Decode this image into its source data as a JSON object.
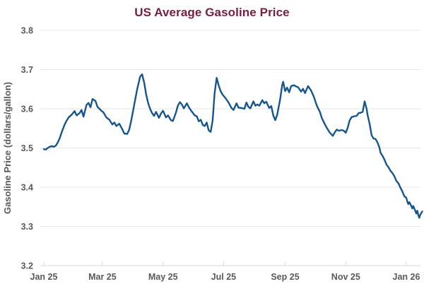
{
  "title": "US Average Gasoline Price",
  "colors": {
    "title": "#7a1c3d",
    "line": "#16568c",
    "axis_text": "#58595b",
    "gridline": "#e6e6e6",
    "bottom_line": "#d9d9d9",
    "background": "#ffffff"
  },
  "chart_data": {
    "type": "line",
    "title": "US Average Gasoline Price",
    "xlabel": "",
    "ylabel": "Gasoline Price (dollars/gallon)",
    "ylim": [
      3.2,
      3.8
    ],
    "y_tick_values": [
      3.8,
      3.7,
      3.6,
      3.5,
      3.4,
      3.3,
      3.2
    ],
    "y_tick_labels": [
      "3.8",
      "3.7",
      "3.6",
      "3.5",
      "3.4",
      "3.3",
      "3.2"
    ],
    "x_tick_labels": [
      "Jan 25",
      "Mar 25",
      "May 25",
      "Jul 25",
      "Sep 25",
      "Nov 25",
      "Jan 26"
    ],
    "x_tick_days": [
      0,
      59,
      120,
      181,
      243,
      304,
      365
    ],
    "x_unit": "days since Jan 1 2025",
    "x_range_days": [
      0,
      381
    ],
    "grid": "horizontal only",
    "legend": "none",
    "series": [
      {
        "name": "US average gasoline price (dollars/gallon)",
        "points": [
          [
            0,
            3.497
          ],
          [
            2,
            3.496
          ],
          [
            4,
            3.5
          ],
          [
            6,
            3.503
          ],
          [
            8,
            3.505
          ],
          [
            10,
            3.503
          ],
          [
            12,
            3.506
          ],
          [
            14,
            3.514
          ],
          [
            16,
            3.525
          ],
          [
            18,
            3.54
          ],
          [
            21,
            3.56
          ],
          [
            23,
            3.57
          ],
          [
            25,
            3.578
          ],
          [
            28,
            3.585
          ],
          [
            31,
            3.594
          ],
          [
            33,
            3.583
          ],
          [
            36,
            3.589
          ],
          [
            38,
            3.597
          ],
          [
            40,
            3.58
          ],
          [
            43,
            3.61
          ],
          [
            45,
            3.615
          ],
          [
            47,
            3.604
          ],
          [
            49,
            3.625
          ],
          [
            52,
            3.62
          ],
          [
            54,
            3.605
          ],
          [
            56,
            3.6
          ],
          [
            58,
            3.595
          ],
          [
            60,
            3.591
          ],
          [
            63,
            3.578
          ],
          [
            66,
            3.572
          ],
          [
            69,
            3.56
          ],
          [
            71,
            3.565
          ],
          [
            73,
            3.556
          ],
          [
            76,
            3.562
          ],
          [
            79,
            3.548
          ],
          [
            81,
            3.537
          ],
          [
            84,
            3.536
          ],
          [
            86,
            3.547
          ],
          [
            88,
            3.57
          ],
          [
            91,
            3.61
          ],
          [
            94,
            3.65
          ],
          [
            97,
            3.682
          ],
          [
            99,
            3.688
          ],
          [
            101,
            3.667
          ],
          [
            103,
            3.637
          ],
          [
            105,
            3.615
          ],
          [
            107,
            3.6
          ],
          [
            109,
            3.589
          ],
          [
            111,
            3.582
          ],
          [
            113,
            3.592
          ],
          [
            116,
            3.577
          ],
          [
            118,
            3.588
          ],
          [
            120,
            3.595
          ],
          [
            123,
            3.578
          ],
          [
            125,
            3.583
          ],
          [
            128,
            3.571
          ],
          [
            130,
            3.569
          ],
          [
            133,
            3.59
          ],
          [
            135,
            3.608
          ],
          [
            137,
            3.617
          ],
          [
            139,
            3.611
          ],
          [
            141,
            3.601
          ],
          [
            144,
            3.614
          ],
          [
            146,
            3.604
          ],
          [
            149,
            3.593
          ],
          [
            152,
            3.583
          ],
          [
            154,
            3.581
          ],
          [
            156,
            3.568
          ],
          [
            158,
            3.572
          ],
          [
            160,
            3.559
          ],
          [
            162,
            3.556
          ],
          [
            164,
            3.565
          ],
          [
            166,
            3.545
          ],
          [
            168,
            3.541
          ],
          [
            170,
            3.57
          ],
          [
            172,
            3.64
          ],
          [
            174,
            3.679
          ],
          [
            176,
            3.66
          ],
          [
            178,
            3.645
          ],
          [
            180,
            3.636
          ],
          [
            183,
            3.627
          ],
          [
            186,
            3.616
          ],
          [
            189,
            3.602
          ],
          [
            191,
            3.597
          ],
          [
            194,
            3.614
          ],
          [
            196,
            3.603
          ],
          [
            199,
            3.602
          ],
          [
            202,
            3.6
          ],
          [
            204,
            3.616
          ],
          [
            206,
            3.605
          ],
          [
            208,
            3.601
          ],
          [
            211,
            3.619
          ],
          [
            213,
            3.608
          ],
          [
            215,
            3.611
          ],
          [
            217,
            3.608
          ],
          [
            220,
            3.622
          ],
          [
            222,
            3.614
          ],
          [
            224,
            3.618
          ],
          [
            227,
            3.602
          ],
          [
            229,
            3.607
          ],
          [
            231,
            3.583
          ],
          [
            233,
            3.571
          ],
          [
            235,
            3.585
          ],
          [
            238,
            3.625
          ],
          [
            240,
            3.66
          ],
          [
            241,
            3.669
          ],
          [
            243,
            3.645
          ],
          [
            245,
            3.654
          ],
          [
            247,
            3.642
          ],
          [
            249,
            3.658
          ],
          [
            252,
            3.66
          ],
          [
            254,
            3.657
          ],
          [
            256,
            3.655
          ],
          [
            259,
            3.644
          ],
          [
            261,
            3.651
          ],
          [
            263,
            3.64
          ],
          [
            266,
            3.658
          ],
          [
            269,
            3.647
          ],
          [
            272,
            3.63
          ],
          [
            275,
            3.607
          ],
          [
            278,
            3.592
          ],
          [
            280,
            3.576
          ],
          [
            283,
            3.56
          ],
          [
            285,
            3.551
          ],
          [
            288,
            3.539
          ],
          [
            291,
            3.531
          ],
          [
            293,
            3.54
          ],
          [
            295,
            3.547
          ],
          [
            297,
            3.544
          ],
          [
            300,
            3.546
          ],
          [
            302,
            3.544
          ],
          [
            304,
            3.539
          ],
          [
            306,
            3.552
          ],
          [
            308,
            3.571
          ],
          [
            310,
            3.579
          ],
          [
            313,
            3.581
          ],
          [
            315,
            3.582
          ],
          [
            317,
            3.589
          ],
          [
            319,
            3.59
          ],
          [
            321,
            3.592
          ],
          [
            323,
            3.619
          ],
          [
            325,
            3.6
          ],
          [
            326,
            3.584
          ],
          [
            328,
            3.562
          ],
          [
            330,
            3.533
          ],
          [
            332,
            3.524
          ],
          [
            334,
            3.523
          ],
          [
            336,
            3.514
          ],
          [
            338,
            3.5
          ],
          [
            339,
            3.488
          ],
          [
            341,
            3.48
          ],
          [
            343,
            3.47
          ],
          [
            345,
            3.458
          ],
          [
            347,
            3.451
          ],
          [
            349,
            3.442
          ],
          [
            351,
            3.436
          ],
          [
            353,
            3.428
          ],
          [
            355,
            3.416
          ],
          [
            357,
            3.41
          ],
          [
            359,
            3.399
          ],
          [
            361,
            3.389
          ],
          [
            363,
            3.377
          ],
          [
            365,
            3.373
          ],
          [
            366,
            3.363
          ],
          [
            367,
            3.357
          ],
          [
            368,
            3.362
          ],
          [
            370,
            3.352
          ],
          [
            371,
            3.346
          ],
          [
            372,
            3.352
          ],
          [
            374,
            3.34
          ],
          [
            375,
            3.333
          ],
          [
            376,
            3.34
          ],
          [
            377,
            3.329
          ],
          [
            378,
            3.322
          ],
          [
            379,
            3.33
          ],
          [
            381,
            3.338
          ]
        ]
      }
    ]
  }
}
